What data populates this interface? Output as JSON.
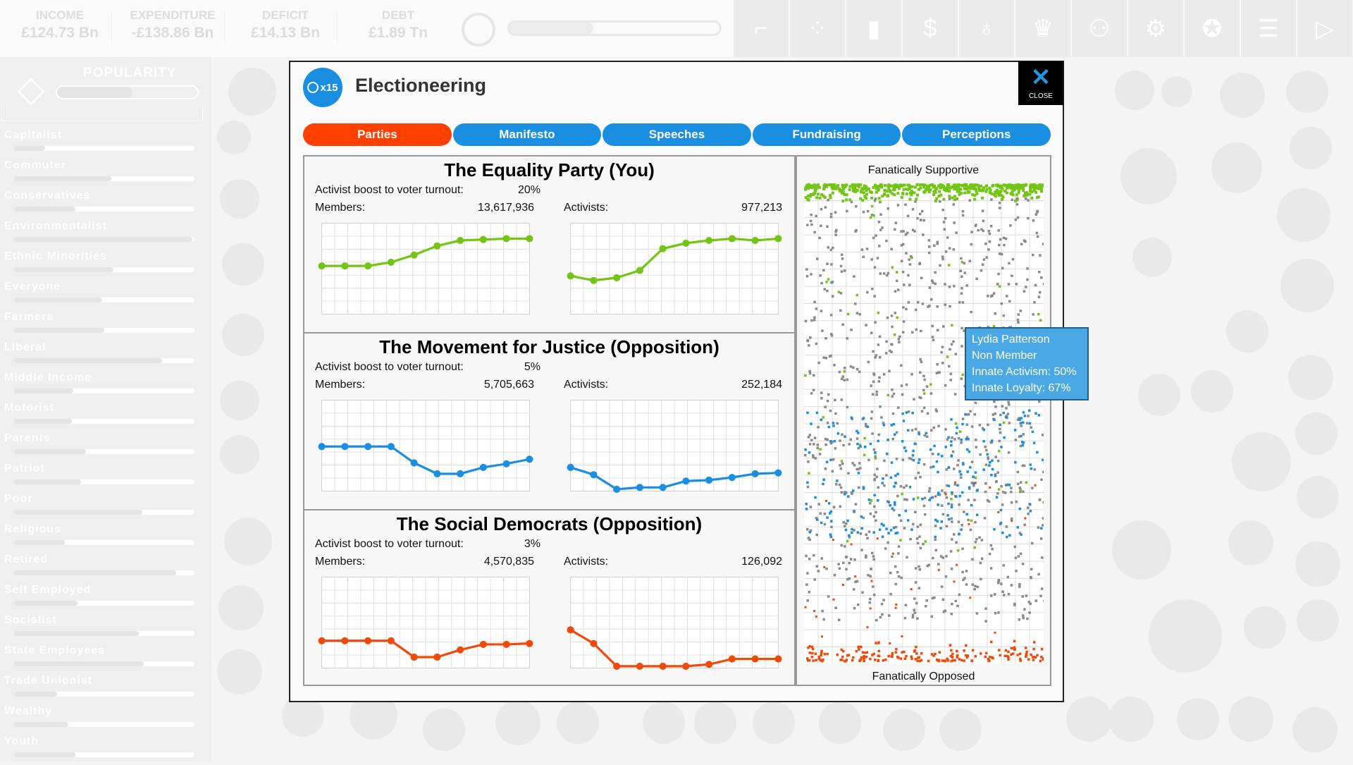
{
  "topbar": {
    "stats": [
      {
        "label": "INCOME",
        "value": "£124.73 Bn"
      },
      {
        "label": "EXPENDITURE",
        "value": "-£138.86 Bn"
      },
      {
        "label": "DEFICIT",
        "value": "£14.13 Bn"
      },
      {
        "label": "DEBT",
        "value": "£1.89 Tn"
      }
    ],
    "progress": 0.4,
    "tiles": [
      {
        "icon": "gun-icon",
        "glyph": "⌐"
      },
      {
        "icon": "people-icon",
        "glyph": "⁘"
      },
      {
        "icon": "bar-chart-icon",
        "glyph": "▮"
      },
      {
        "icon": "dollar-icon",
        "glyph": "$"
      },
      {
        "icon": "lightbulb-icon",
        "glyph": "♁"
      },
      {
        "icon": "trophy-icon",
        "glyph": "♛"
      },
      {
        "icon": "group-icon",
        "glyph": "⚇"
      },
      {
        "icon": "gear-icon",
        "glyph": "⚙"
      },
      {
        "icon": "award-icon",
        "glyph": "✪"
      },
      {
        "icon": "document-icon",
        "glyph": "☰"
      },
      {
        "icon": "play-icon",
        "glyph": "▷"
      }
    ]
  },
  "sidebar": {
    "title": "POPULARITY",
    "overall": 0.54,
    "groups": [
      {
        "name": "Capitalist",
        "value": 0.17
      },
      {
        "name": "Commuter",
        "value": 0.54
      },
      {
        "name": "Conservatives",
        "value": 0.34
      },
      {
        "name": "Environmentalist",
        "value": 0.99
      },
      {
        "name": "Ethnic Minorities",
        "value": 0.55
      },
      {
        "name": "Everyone",
        "value": 0.49
      },
      {
        "name": "Farmers",
        "value": 0.5
      },
      {
        "name": "Liberal",
        "value": 0.82
      },
      {
        "name": "Middle Income",
        "value": 0.33
      },
      {
        "name": "Motorist",
        "value": 0.32
      },
      {
        "name": "Parents",
        "value": 0.4
      },
      {
        "name": "Patriot",
        "value": 0.37
      },
      {
        "name": "Poor",
        "value": 0.71
      },
      {
        "name": "Religious",
        "value": 0.28
      },
      {
        "name": "Retired",
        "value": 0.9
      },
      {
        "name": "Self Employed",
        "value": 0.35
      },
      {
        "name": "Socialist",
        "value": 0.69
      },
      {
        "name": "State Employees",
        "value": 0.72
      },
      {
        "name": "Trade Unionist",
        "value": 0.24
      },
      {
        "name": "Wealthy",
        "value": 0.3
      },
      {
        "name": "Youth",
        "value": 0.34
      }
    ]
  },
  "modal": {
    "badge": "x15",
    "title": "Electioneering",
    "close": "CLOSE",
    "tabs": [
      {
        "label": "Parties",
        "active": true
      },
      {
        "label": "Manifesto"
      },
      {
        "label": "Speeches"
      },
      {
        "label": "Fundraising"
      },
      {
        "label": "Perceptions"
      }
    ],
    "boost_label": "Activist boost to voter turnout:",
    "members_label": "Members:",
    "activists_label": "Activists:",
    "parties": [
      {
        "name": "The Equality Party (You)",
        "boost": "20%",
        "members": "13,617,936",
        "activists": "977,213",
        "color": "#72c514",
        "members_trend": [
          53,
          53,
          53,
          57,
          65,
          75,
          81,
          82,
          83,
          83
        ],
        "activists_trend": [
          42,
          37,
          40,
          48,
          72,
          78,
          81,
          83,
          81,
          83
        ]
      },
      {
        "name": "The Movement for Justice (Opposition)",
        "boost": "5%",
        "members": "5,705,663",
        "activists": "252,184",
        "color": "#1a8ee0",
        "members_trend": [
          49,
          49,
          49,
          49,
          31,
          19,
          19,
          26,
          30,
          35
        ],
        "activists_trend": [
          26,
          18,
          2,
          4,
          4,
          11,
          12,
          15,
          19,
          20
        ]
      },
      {
        "name": "The Social Democrats (Opposition)",
        "boost": "3%",
        "members": "4,570,835",
        "activists": "126,092",
        "color": "#f04a0a",
        "members_trend": [
          30,
          30,
          30,
          30,
          12,
          12,
          20,
          26,
          26,
          27
        ],
        "activists_trend": [
          42,
          27,
          2,
          2,
          2,
          2,
          4,
          10,
          10,
          10
        ]
      }
    ],
    "perceptions": {
      "top": "Fanatically Supportive",
      "bottom": "Fanatically Opposed",
      "neutral_color": "#8a8a8a"
    },
    "tooltip": {
      "name": "Lydia Patterson",
      "status": "Non Member",
      "activism": "Innate Activism: 50%",
      "loyalty": "Innate Loyalty: 67%"
    }
  }
}
